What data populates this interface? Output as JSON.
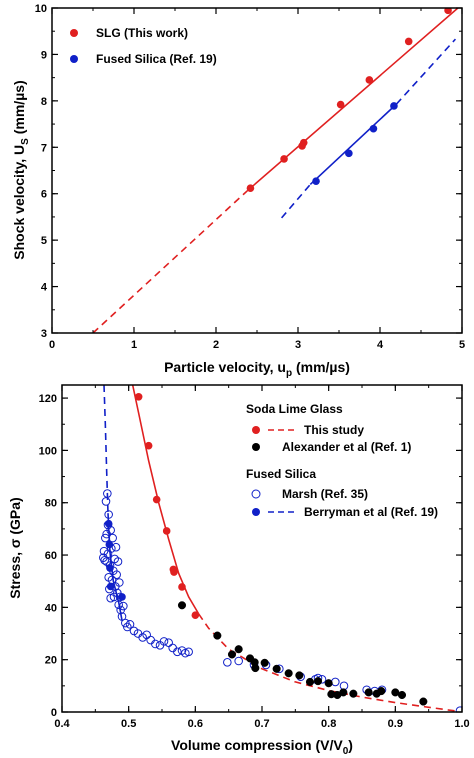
{
  "chart_data": [
    {
      "type": "scatter",
      "xlabel_main": "Particle velocity, u",
      "xlabel_sub": "p",
      "xlabel_unit": " (mm/µs)",
      "ylabel_main": "Shock velocity, U",
      "ylabel_sub": "S",
      "ylabel_unit": " (mm/µs)",
      "xlim": [
        0,
        5
      ],
      "ylim": [
        3,
        10
      ],
      "xticks": [
        0,
        1,
        2,
        3,
        4,
        5
      ],
      "yticks": [
        3,
        4,
        5,
        6,
        7,
        8,
        9,
        10
      ],
      "legend_position": "top-left",
      "series": [
        {
          "name": "SLG (This work)",
          "color": "#e02020",
          "marker": "filled-circle",
          "points": [
            [
              2.42,
              6.12
            ],
            [
              2.83,
              6.75
            ],
            [
              3.05,
              7.03
            ],
            [
              3.07,
              7.1
            ],
            [
              3.52,
              7.92
            ],
            [
              3.87,
              8.45
            ],
            [
              4.35,
              9.28
            ],
            [
              4.83,
              9.95
            ]
          ],
          "fit_solid": [
            [
              2.38,
              6.06
            ],
            [
              4.95,
              10.0
            ]
          ],
          "fit_dashed": [
            [
              0.5,
              3.0
            ],
            [
              2.38,
              6.06
            ]
          ]
        },
        {
          "name": "Fused Silica  (Ref. 19)",
          "color": "#1020c8",
          "marker": "filled-circle",
          "points": [
            [
              3.22,
              6.27
            ],
            [
              3.62,
              6.87
            ],
            [
              3.92,
              7.4
            ],
            [
              4.17,
              7.89
            ]
          ],
          "fit_solid": [
            [
              3.15,
              6.2
            ],
            [
              4.2,
              7.93
            ]
          ],
          "fit_dashed": [
            [
              2.8,
              5.48
            ],
            [
              3.15,
              6.2
            ]
          ],
          "fit_dashed_upper": [
            [
              4.2,
              7.93
            ],
            [
              4.92,
              9.33
            ]
          ]
        }
      ]
    },
    {
      "type": "scatter",
      "xlabel_main": "Volume compression (V/V",
      "xlabel_sub": "0",
      "xlabel_unit": ")",
      "ylabel": "Stress, σ (GPa)",
      "xlim": [
        0.4,
        1.0
      ],
      "ylim": [
        0,
        125
      ],
      "xticks": [
        0.4,
        0.5,
        0.6,
        0.7,
        0.8,
        0.9,
        1.0
      ],
      "xtick_labels": [
        "0.4",
        "0.5",
        "0.6",
        "0.7",
        "0.8",
        "0.9",
        "1.0"
      ],
      "yticks": [
        0,
        20,
        40,
        60,
        80,
        100,
        120
      ],
      "legend_position": "top-right",
      "legend_groups": [
        {
          "title": "Soda Lime Glass",
          "entries": [
            {
              "label": "This study",
              "marker": "filled-circle",
              "color": "#e02020",
              "line": "dashed"
            },
            {
              "label": "Alexander et al (Ref. 1)",
              "marker": "filled-circle",
              "color": "#000000",
              "line": "none"
            }
          ]
        },
        {
          "title": "Fused Silica",
          "entries": [
            {
              "label": "Marsh (Ref. 35)",
              "marker": "open-circle",
              "color": "#1020c8",
              "line": "none"
            },
            {
              "label": "Berryman et al (Ref. 19)",
              "marker": "filled-circle",
              "color": "#1020c8",
              "line": "dashed"
            }
          ]
        }
      ],
      "series": [
        {
          "name": "This study",
          "color": "#e02020",
          "marker": "filled-circle",
          "points": [
            [
              0.515,
              120.5
            ],
            [
              0.53,
              101.8
            ],
            [
              0.542,
              81.2
            ],
            [
              0.557,
              69.2
            ],
            [
              0.567,
              54.5
            ],
            [
              0.568,
              53.5
            ],
            [
              0.58,
              47.8
            ],
            [
              0.6,
              37.0
            ]
          ],
          "fit_solid": [
            [
              0.506,
              125
            ],
            [
              0.516,
              113
            ],
            [
              0.53,
              96
            ],
            [
              0.545,
              80
            ],
            [
              0.56,
              66
            ],
            [
              0.575,
              53
            ],
            [
              0.59,
              44
            ],
            [
              0.605,
              37.5
            ]
          ],
          "fit_dashed": [
            [
              0.605,
              37.5
            ],
            [
              0.62,
              32
            ],
            [
              0.65,
              24
            ],
            [
              0.7,
              16.5
            ],
            [
              0.75,
              11.5
            ],
            [
              0.8,
              8.2
            ],
            [
              0.85,
              5.7
            ],
            [
              0.9,
              3.6
            ],
            [
              0.95,
              1.8
            ],
            [
              0.99,
              0.4
            ]
          ]
        },
        {
          "name": "Alexander et al (Ref. 1)",
          "color": "#000000",
          "marker": "filled-circle",
          "points": [
            [
              0.58,
              40.8
            ],
            [
              0.633,
              29.2
            ],
            [
              0.655,
              22.0
            ],
            [
              0.665,
              24.0
            ],
            [
              0.682,
              20.5
            ],
            [
              0.689,
              19.0
            ],
            [
              0.69,
              16.8
            ],
            [
              0.704,
              18.8
            ],
            [
              0.722,
              16.5
            ],
            [
              0.74,
              14.8
            ],
            [
              0.756,
              14.0
            ],
            [
              0.772,
              11.5
            ],
            [
              0.784,
              11.8
            ],
            [
              0.8,
              11.0
            ],
            [
              0.804,
              6.8
            ],
            [
              0.813,
              6.5
            ],
            [
              0.822,
              7.5
            ],
            [
              0.837,
              7.0
            ],
            [
              0.86,
              7.5
            ],
            [
              0.872,
              7.0
            ],
            [
              0.879,
              8.0
            ],
            [
              0.9,
              7.5
            ],
            [
              0.91,
              6.5
            ],
            [
              0.942,
              4.0
            ]
          ]
        },
        {
          "name": "Marsh (Ref. 35)",
          "color": "#1020c8",
          "marker": "open-circle",
          "points": [
            [
              0.462,
              59.0
            ],
            [
              0.463,
              61.5
            ],
            [
              0.464,
              58.0
            ],
            [
              0.465,
              66.5
            ],
            [
              0.466,
              80.5
            ],
            [
              0.467,
              68.0
            ],
            [
              0.467,
              57.5
            ],
            [
              0.468,
              83.5
            ],
            [
              0.469,
              60.5
            ],
            [
              0.469,
              71.5
            ],
            [
              0.47,
              75.5
            ],
            [
              0.47,
              51.5
            ],
            [
              0.471,
              47.0
            ],
            [
              0.472,
              56.0
            ],
            [
              0.473,
              69.5
            ],
            [
              0.473,
              43.5
            ],
            [
              0.474,
              62.5
            ],
            [
              0.475,
              50.5
            ],
            [
              0.476,
              66.5
            ],
            [
              0.477,
              54.0
            ],
            [
              0.478,
              44.0
            ],
            [
              0.479,
              58.5
            ],
            [
              0.48,
              48.0
            ],
            [
              0.481,
              63.0
            ],
            [
              0.482,
              52.5
            ],
            [
              0.483,
              45.5
            ],
            [
              0.484,
              57.5
            ],
            [
              0.485,
              41.0
            ],
            [
              0.486,
              49.5
            ],
            [
              0.487,
              44.0
            ],
            [
              0.488,
              39.0
            ],
            [
              0.49,
              36.5
            ],
            [
              0.492,
              40.5
            ],
            [
              0.495,
              34.0
            ],
            [
              0.498,
              32.5
            ],
            [
              0.502,
              33.5
            ],
            [
              0.508,
              31.0
            ],
            [
              0.514,
              30.0
            ],
            [
              0.521,
              28.5
            ],
            [
              0.527,
              29.5
            ],
            [
              0.533,
              27.5
            ],
            [
              0.54,
              26.0
            ],
            [
              0.547,
              25.5
            ],
            [
              0.553,
              27.0
            ],
            [
              0.56,
              26.5
            ],
            [
              0.566,
              24.5
            ],
            [
              0.573,
              23.0
            ],
            [
              0.58,
              23.5
            ],
            [
              0.585,
              22.5
            ],
            [
              0.59,
              23.0
            ],
            [
              0.648,
              19.0
            ],
            [
              0.665,
              19.5
            ],
            [
              0.688,
              18.0
            ],
            [
              0.706,
              18.0
            ],
            [
              0.726,
              16.5
            ],
            [
              0.758,
              13.5
            ],
            [
              0.78,
              12.5
            ],
            [
              0.784,
              13.0
            ],
            [
              0.79,
              12.5
            ],
            [
              0.81,
              11.5
            ],
            [
              0.823,
              10.0
            ],
            [
              0.857,
              8.5
            ],
            [
              0.869,
              8.0
            ],
            [
              0.88,
              8.5
            ],
            [
              0.997,
              0.5
            ]
          ]
        },
        {
          "name": "Berryman et al (Ref. 19)",
          "color": "#1020c8",
          "marker": "filled-circle",
          "points": [
            [
              0.47,
              72.0
            ],
            [
              0.471,
              64.0
            ],
            [
              0.472,
              55.0
            ],
            [
              0.473,
              48.0
            ],
            [
              0.49,
              44.0
            ]
          ],
          "fit_solid": [
            [
              0.469,
              76
            ],
            [
              0.472,
              61
            ],
            [
              0.477,
              50
            ],
            [
              0.485,
              42
            ],
            [
              0.49,
              35
            ]
          ],
          "fit_dashed": [
            [
              0.463,
              125
            ],
            [
              0.465,
              110
            ],
            [
              0.467,
              92
            ],
            [
              0.469,
              76
            ]
          ]
        }
      ]
    }
  ]
}
